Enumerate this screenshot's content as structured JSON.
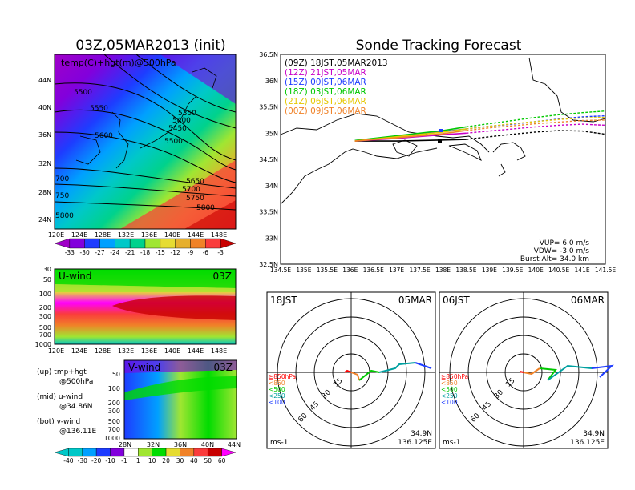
{
  "left": {
    "title": "03Z,05MAR2013 (init)",
    "map_label": "temp(C)+hgt(m)@500hPa",
    "contours": [
      "5500",
      "5550",
      "5600",
      "5350",
      "5400",
      "5450",
      "5500",
      "5650",
      "5700",
      "5750",
      "5800",
      "700",
      "750",
      "5800"
    ],
    "lat_ticks": [
      "44N",
      "40N",
      "36N",
      "32N",
      "28N",
      "24N"
    ],
    "lon_ticks": [
      "120E",
      "124E",
      "128E",
      "132E",
      "136E",
      "140E",
      "144E",
      "148E"
    ],
    "temp_colorbar": [
      "-33",
      "-30",
      "-27",
      "-24",
      "-21",
      "-18",
      "-15",
      "-12",
      "-9",
      "-6",
      "-3"
    ],
    "uwind": {
      "label": "U-wind",
      "time": "03Z",
      "p_ticks": [
        "30",
        "50",
        "100",
        "200",
        "300",
        "500",
        "700",
        "1000"
      ]
    },
    "vwind": {
      "label": "V-wind",
      "time": "03Z",
      "p_ticks": [
        "50",
        "100",
        "200",
        "300",
        "500",
        "700",
        "1000"
      ],
      "lat_ticks": [
        "28N",
        "32N",
        "36N",
        "40N",
        "44N"
      ]
    },
    "notes": [
      "(up) tmp+hgt",
      "@500hPa",
      "(mid) u-wind",
      "@34.86N",
      "(bot) v-wind",
      "@136.11E"
    ],
    "wind_colorbar": [
      "-40",
      "-30",
      "-20",
      "-10",
      "-1",
      "1",
      "10",
      "20",
      "30",
      "40",
      "50",
      "60"
    ],
    "colors": {
      "temp": [
        "#a000c8",
        "#8200dc",
        "#1e3cff",
        "#00a0ff",
        "#00c8c8",
        "#00d28c",
        "#a0e632",
        "#e6dc32",
        "#e6af2d",
        "#f08228",
        "#fa3c3c",
        "#c80000"
      ],
      "wind": [
        "#00c8c8",
        "#00a0ff",
        "#1e3cff",
        "#8200dc",
        "#fff",
        "#a0e632",
        "#00dc00",
        "#e6dc32",
        "#f08228",
        "#fa3c3c",
        "#c80000",
        "#ff00ff"
      ]
    }
  },
  "tracking": {
    "title": "Sonde Tracking Forecast",
    "legend": [
      {
        "label": "(09Z)  18JST,05MAR2013",
        "color": "#000000"
      },
      {
        "label": "(12Z)  21JST,05MAR",
        "color": "#c800c8"
      },
      {
        "label": "(15Z)  00JST,06MAR",
        "color": "#1e3cff"
      },
      {
        "label": "(18Z)  03JST,06MAR",
        "color": "#00c800"
      },
      {
        "label": "(21Z)  06JST,06MAR",
        "color": "#e6c800"
      },
      {
        "label": "(00Z)  09JST,06MAR",
        "color": "#f08228"
      }
    ],
    "lat_ticks": [
      "36.5N",
      "36N",
      "35.5N",
      "35N",
      "34.5N",
      "34N",
      "33.5N",
      "33N",
      "32.5N"
    ],
    "lon_ticks": [
      "134.5E",
      "135E",
      "135.5E",
      "136E",
      "136.5E",
      "137E",
      "137.5E",
      "138E",
      "138.5E",
      "139E",
      "139.5E",
      "140E",
      "140.5E",
      "141E",
      "141.5E"
    ],
    "info": [
      "VUP=  6.0 m/s",
      "VDW= -3.0 m/s",
      "Burst Alt= 34.0 km"
    ]
  },
  "hodographs": [
    {
      "time": "18JST",
      "date": "05MAR",
      "rings": [
        "15",
        "30",
        "45",
        "60"
      ],
      "levels": [
        "≧850hPa",
        "<850",
        "<500",
        "<250",
        "<100"
      ],
      "units": "ms-1",
      "lat": "34.9N",
      "lon": "136.125E"
    },
    {
      "time": "06JST",
      "date": "06MAR",
      "rings": [
        "15",
        "30",
        "45",
        "60"
      ],
      "levels": [
        "≧850hPa",
        "<850",
        "<500",
        "<250",
        "<100"
      ],
      "units": "ms-1",
      "lat": "34.9N",
      "lon": "136.125E"
    }
  ],
  "chart_data": [
    {
      "type": "heatmap",
      "title": "03Z,05MAR2013 (init)",
      "variable": "temp(C)+hgt(m)@500hPa",
      "xlabel": "",
      "ylabel": "",
      "x": [
        "120E",
        "124E",
        "128E",
        "132E",
        "136E",
        "140E",
        "144E",
        "148E"
      ],
      "y": [
        "24N",
        "28N",
        "32N",
        "36N",
        "40N",
        "44N"
      ],
      "colorbar": [
        -33,
        -30,
        -27,
        -24,
        -21,
        -18,
        -15,
        -12,
        -9,
        -6,
        -3
      ],
      "contour_labels": [
        5350,
        5400,
        5450,
        5500,
        5550,
        5600,
        5650,
        5700,
        5750,
        5800
      ]
    },
    {
      "type": "heatmap",
      "title": "U-wind",
      "time": "03Z",
      "x": [
        "120E",
        "124E",
        "128E",
        "132E",
        "136E",
        "140E",
        "144E",
        "148E"
      ],
      "y_pressure_hPa": [
        30,
        50,
        100,
        200,
        300,
        500,
        700,
        1000
      ],
      "colorbar": [
        -40,
        -30,
        -20,
        -10,
        -1,
        1,
        10,
        20,
        30,
        40,
        50,
        60
      ]
    },
    {
      "type": "heatmap",
      "title": "V-wind",
      "time": "03Z",
      "x": [
        "28N",
        "32N",
        "36N",
        "40N",
        "44N"
      ],
      "y_pressure_hPa": [
        50,
        100,
        200,
        300,
        500,
        700,
        1000
      ],
      "colorbar": [
        -40,
        -30,
        -20,
        -10,
        -1,
        1,
        10,
        20,
        30,
        40,
        50,
        60
      ]
    },
    {
      "type": "line",
      "title": "Sonde Tracking Forecast",
      "xlim": [
        134.5,
        141.5
      ],
      "ylim": [
        32.5,
        36.5
      ],
      "series": [
        {
          "name": "(09Z)  18JST,05MAR2013",
          "x": [
            136.1,
            137,
            138,
            138.5,
            139,
            139.5,
            140,
            140.5,
            141,
            141.5
          ],
          "y": [
            34.85,
            34.85,
            34.87,
            34.88,
            34.93,
            34.98,
            35.02,
            35.05,
            35.04,
            34.98
          ]
        },
        {
          "name": "(12Z)  21JST,05MAR",
          "x": [
            136.1,
            137,
            138,
            138.5,
            139,
            139.5,
            140,
            140.5,
            141,
            141.5
          ],
          "y": [
            34.85,
            34.9,
            34.97,
            35.0,
            35.04,
            35.08,
            35.12,
            35.15,
            35.17,
            35.15
          ]
        },
        {
          "name": "(15Z)  00JST,06MAR",
          "x": [
            136.1,
            137,
            138,
            138.5,
            139,
            139.5,
            140,
            140.5,
            141,
            141.5
          ],
          "y": [
            34.86,
            34.93,
            35.03,
            35.08,
            35.13,
            35.17,
            35.22,
            35.27,
            35.31,
            35.33
          ]
        },
        {
          "name": "(18Z)  03JST,06MAR",
          "x": [
            136.1,
            137,
            138,
            138.5,
            139,
            139.5,
            140,
            140.5,
            141,
            141.5
          ],
          "y": [
            34.86,
            34.95,
            35.05,
            35.12,
            35.18,
            35.24,
            35.3,
            35.35,
            35.39,
            35.42
          ]
        },
        {
          "name": "(21Z)  06JST,06MAR",
          "x": [
            136.1,
            137,
            138,
            138.5,
            139,
            139.5,
            140,
            140.5,
            141,
            141.5
          ],
          "y": [
            34.85,
            34.93,
            35.02,
            35.08,
            35.13,
            35.18,
            35.22,
            35.26,
            35.29,
            35.3
          ]
        },
        {
          "name": "(00Z)  09JST,06MAR",
          "x": [
            136.1,
            137,
            138,
            138.5,
            139,
            139.5,
            140,
            140.5,
            141,
            141.5
          ],
          "y": [
            34.85,
            34.91,
            34.99,
            35.05,
            35.1,
            35.14,
            35.18,
            35.21,
            35.24,
            35.25
          ]
        }
      ]
    }
  ]
}
